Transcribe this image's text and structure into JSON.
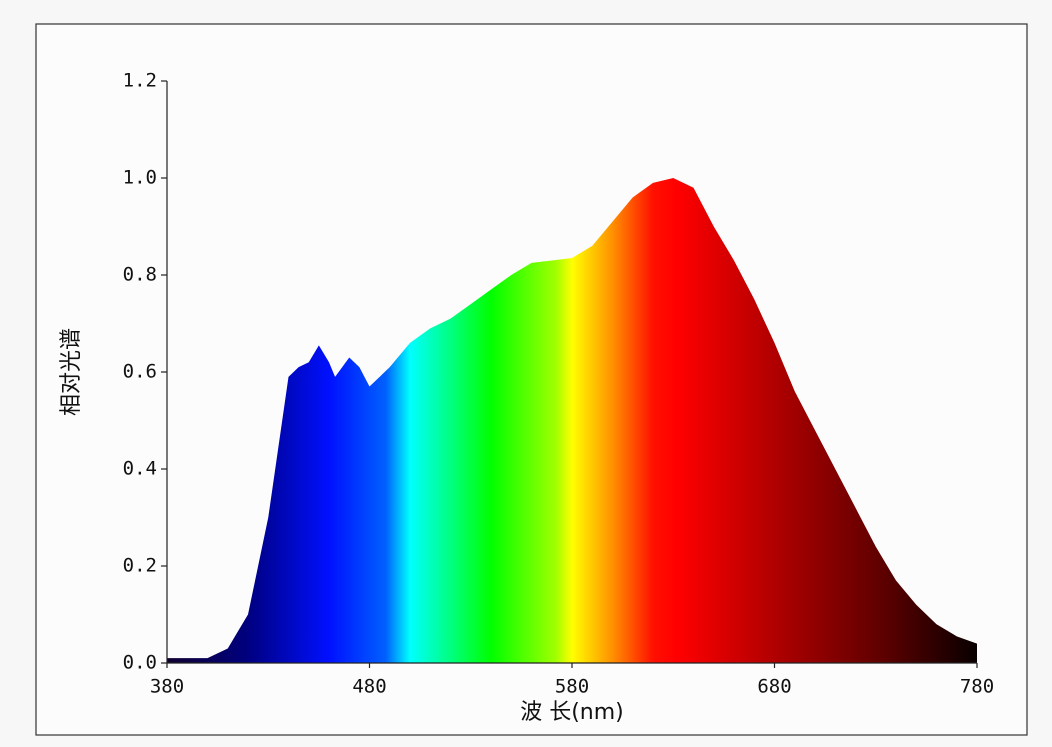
{
  "chart_data": {
    "type": "area",
    "xlabel": "波 长(nm)",
    "ylabel": "相对光谱",
    "x": [
      380,
      390,
      400,
      410,
      420,
      430,
      440,
      445,
      450,
      455,
      460,
      463,
      470,
      475,
      480,
      490,
      500,
      510,
      520,
      530,
      540,
      550,
      560,
      570,
      580,
      590,
      600,
      610,
      620,
      630,
      640,
      650,
      660,
      670,
      680,
      690,
      700,
      710,
      720,
      730,
      740,
      750,
      760,
      770,
      780
    ],
    "values": [
      0.01,
      0.01,
      0.01,
      0.03,
      0.1,
      0.3,
      0.59,
      0.61,
      0.62,
      0.655,
      0.62,
      0.59,
      0.63,
      0.61,
      0.57,
      0.61,
      0.66,
      0.69,
      0.71,
      0.74,
      0.77,
      0.8,
      0.825,
      0.83,
      0.835,
      0.86,
      0.91,
      0.96,
      0.99,
      1.0,
      0.98,
      0.9,
      0.83,
      0.75,
      0.66,
      0.56,
      0.48,
      0.4,
      0.32,
      0.24,
      0.17,
      0.12,
      0.08,
      0.055,
      0.04
    ],
    "xlim": [
      380,
      780
    ],
    "xticks": [
      380,
      480,
      580,
      680,
      780
    ],
    "ylim": [
      0,
      1.2
    ],
    "yticks": [
      {
        "value": 0,
        "label": "0.0"
      },
      0.2,
      0.4,
      0.6,
      0.8,
      {
        "value": 1,
        "label": "1.0"
      },
      1.2
    ]
  }
}
